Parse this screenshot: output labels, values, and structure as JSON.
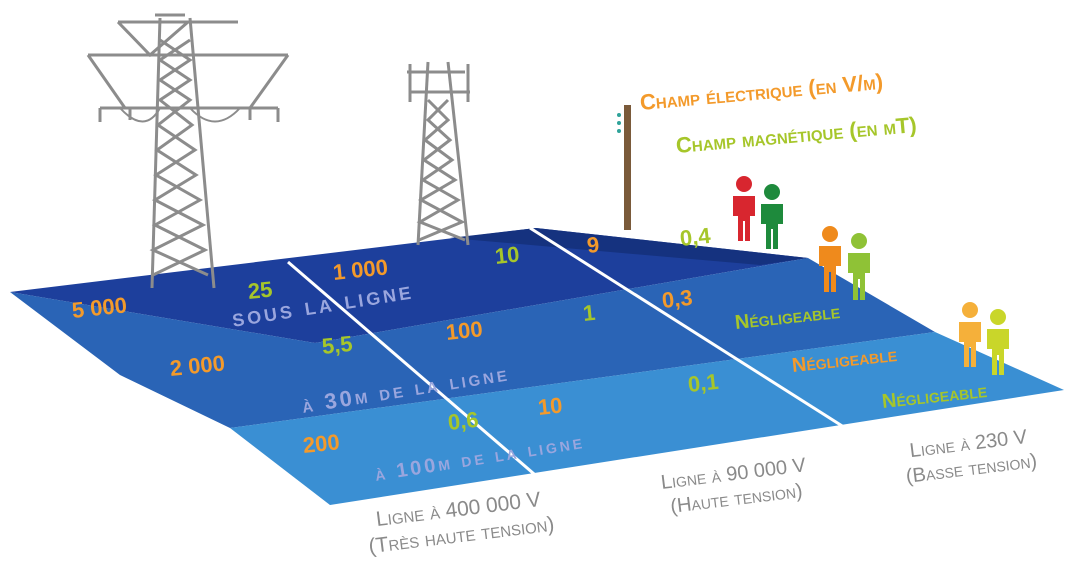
{
  "legend": {
    "electric": "Champ électrique (en V/m)",
    "magnetic": "Champ magnétique (en µT)"
  },
  "colors": {
    "electric": "#f39a2b",
    "magnetic": "#a6c62a",
    "band_text": "#9aa6de",
    "caption": "#8a8a8a"
  },
  "bands": [
    {
      "label": "sous la ligne"
    },
    {
      "label": "à 30m de la ligne"
    },
    {
      "label": "à 100m de la ligne"
    }
  ],
  "values": {
    "r0": {
      "e400": "5 000",
      "m400": "25",
      "e90": "1 000",
      "m90": "10",
      "e230": "9",
      "m230": "0,4"
    },
    "r1": {
      "e400": "2 000",
      "m400": "5,5",
      "e90": "100",
      "m90": "1",
      "e230": "0,3",
      "m230": "Négligeable"
    },
    "r2": {
      "e400": "200",
      "m400": "0,6",
      "e90": "10",
      "m90": "0,1",
      "e230": "Négligeable",
      "m230": "Négligeable"
    }
  },
  "captions": {
    "line400": {
      "l1": "Ligne à 400 000 V",
      "l2": "(Très haute tension)"
    },
    "line90": {
      "l1": "Ligne à 90 000 V",
      "l2": "(Haute tension)"
    },
    "line230": {
      "l1": "Ligne à 230 V",
      "l2": "(Basse tension)"
    }
  },
  "icons": [
    "high-voltage-pylon-icon",
    "medium-voltage-pylon-icon",
    "wooden-pole-icon",
    "person-icon"
  ]
}
